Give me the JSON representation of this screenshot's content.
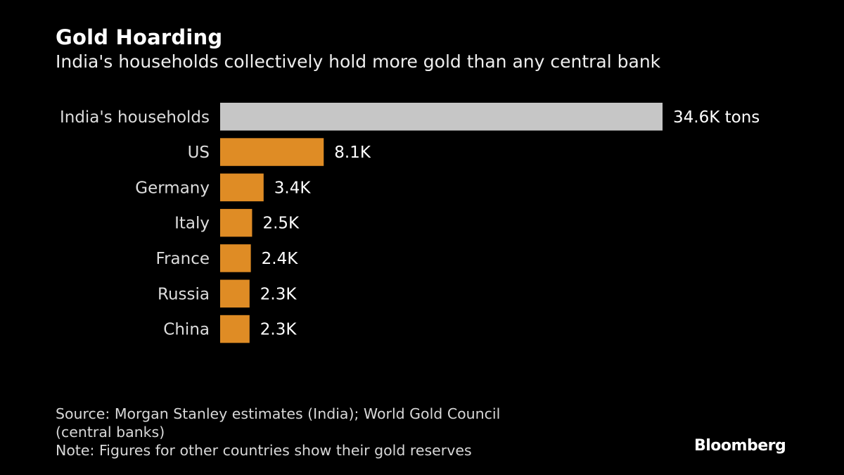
{
  "title": "Gold Hoarding",
  "subtitle": "India's households collectively hold more gold than any central bank",
  "chart_data": {
    "type": "bar",
    "orientation": "horizontal",
    "categories": [
      "India's households",
      "US",
      "Germany",
      "Italy",
      "France",
      "Russia",
      "China"
    ],
    "values": [
      34.6,
      8.1,
      3.4,
      2.5,
      2.4,
      2.3,
      2.3
    ],
    "data_labels": [
      "34.6K tons",
      "8.1K",
      "3.4K",
      "2.5K",
      "2.4K",
      "2.3K",
      "2.3K"
    ],
    "unit": "thousand tons",
    "colors": [
      "#c6c6c6",
      "#df8c25",
      "#df8c25",
      "#df8c25",
      "#df8c25",
      "#df8c25",
      "#df8c25"
    ],
    "grid": false,
    "legend": "none"
  },
  "footer": {
    "source_line1": "Source: Morgan Stanley estimates (India); World Gold Council",
    "source_line2": "(central banks)",
    "note": "Note: Figures for other countries show their gold reserves"
  },
  "logo": "Bloomberg",
  "background": "#000000"
}
